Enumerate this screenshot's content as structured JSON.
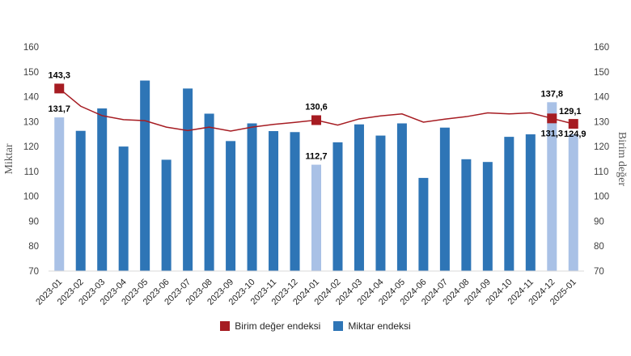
{
  "chart_data": {
    "type": "bar+line",
    "categories": [
      "2023-01",
      "2023-02",
      "2023-03",
      "2023-04",
      "2023-05",
      "2023-06",
      "2023-07",
      "2023-08",
      "2023-09",
      "2023-10",
      "2023-11",
      "2023-12",
      "2024-01",
      "2024-02",
      "2024-03",
      "2024-04",
      "2024-05",
      "2024-06",
      "2024-07",
      "2024-08",
      "2024-09",
      "2024-10",
      "2024-11",
      "2024-12",
      "2025-01"
    ],
    "ylabel_left": "Miktar",
    "ylabel_right": "Birim değer",
    "ylim": [
      70,
      160
    ],
    "yticks": [
      70,
      80,
      90,
      100,
      110,
      120,
      130,
      140,
      150,
      160
    ],
    "grid": false,
    "legend_position": "bottom",
    "series": [
      {
        "name": "Miktar endeksi",
        "type": "bar",
        "color": "#2e75b6",
        "highlight_color": "#a9c1e6",
        "highlight_indices": [
          0,
          12,
          23,
          24
        ],
        "values": [
          131.7,
          126.3,
          135.3,
          120.0,
          146.5,
          114.7,
          143.3,
          133.2,
          122.2,
          129.3,
          126.2,
          125.8,
          112.7,
          121.7,
          128.9,
          124.4,
          129.3,
          107.4,
          127.6,
          114.9,
          113.8,
          123.9,
          124.9,
          137.8,
          124.9
        ]
      },
      {
        "name": "Birim değer endeksi",
        "type": "line",
        "color": "#a61c22",
        "marker_indices": [
          0,
          12,
          23,
          24
        ],
        "values": [
          143.3,
          136.2,
          132.4,
          130.8,
          130.4,
          127.8,
          126.4,
          127.8,
          126.2,
          127.8,
          128.9,
          129.7,
          130.6,
          128.6,
          131.1,
          132.3,
          133.1,
          129.8,
          131.0,
          132.0,
          133.5,
          133.1,
          133.5,
          131.3,
          129.1
        ]
      }
    ],
    "data_labels": {
      "bars": [
        {
          "index": 0,
          "text": "131,7"
        },
        {
          "index": 12,
          "text": "112,7"
        },
        {
          "index": 23,
          "text": "137,8"
        },
        {
          "index": 24,
          "text": "124,9"
        }
      ],
      "line": [
        {
          "index": 0,
          "text": "143,3"
        },
        {
          "index": 12,
          "text": "130,6"
        },
        {
          "index": 23,
          "text": "131,3"
        },
        {
          "index": 24,
          "text": "129,1"
        }
      ]
    }
  },
  "legend": {
    "line_label": "Birim değer endeksi",
    "bar_label": "Miktar endeksi"
  }
}
